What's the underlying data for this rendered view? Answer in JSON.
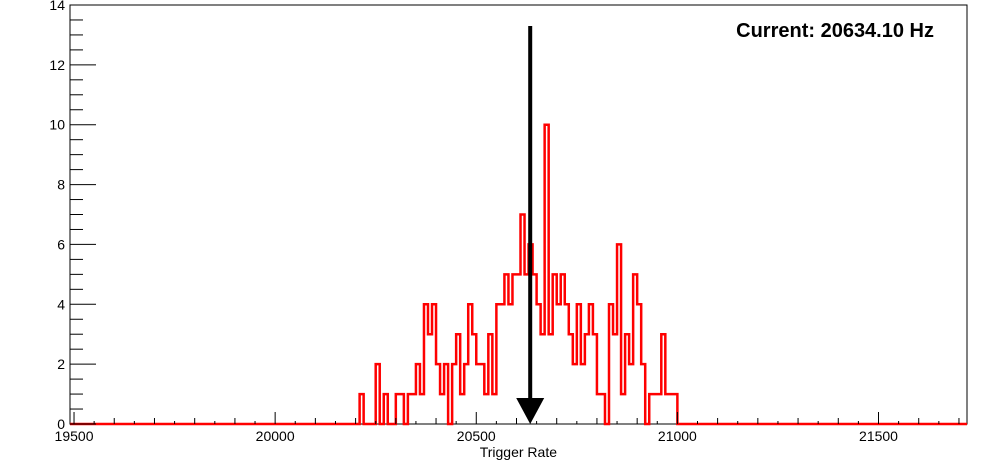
{
  "chart_data": {
    "type": "histogram",
    "title": "",
    "xlabel": "Trigger Rate",
    "ylabel": "",
    "xlim": [
      19490,
      21720
    ],
    "ylim": [
      0,
      14
    ],
    "x_ticks": [
      19500,
      20000,
      20500,
      21000,
      21500
    ],
    "x_tick_labels": [
      "19500",
      "20000",
      "20500",
      "21000",
      "21500"
    ],
    "y_ticks": [
      0,
      2,
      4,
      6,
      8,
      10,
      12,
      14
    ],
    "y_tick_labels": [
      "0",
      "2",
      "4",
      "6",
      "8",
      "10",
      "12",
      "14"
    ],
    "grid": false,
    "legend": "none",
    "bin_width": 10,
    "series": [
      {
        "color": "#ff0000",
        "bins": [
          [
            20210,
            1
          ],
          [
            20220,
            0
          ],
          [
            20230,
            0
          ],
          [
            20240,
            0
          ],
          [
            20250,
            2
          ],
          [
            20260,
            0
          ],
          [
            20270,
            1
          ],
          [
            20280,
            0
          ],
          [
            20290,
            0
          ],
          [
            20300,
            1
          ],
          [
            20310,
            1
          ],
          [
            20320,
            0
          ],
          [
            20330,
            1
          ],
          [
            20340,
            1
          ],
          [
            20350,
            2
          ],
          [
            20360,
            1
          ],
          [
            20370,
            4
          ],
          [
            20380,
            3
          ],
          [
            20390,
            4
          ],
          [
            20400,
            2
          ],
          [
            20410,
            1
          ],
          [
            20420,
            2
          ],
          [
            20430,
            0
          ],
          [
            20440,
            2
          ],
          [
            20450,
            3
          ],
          [
            20460,
            1
          ],
          [
            20470,
            2
          ],
          [
            20480,
            4
          ],
          [
            20490,
            3
          ],
          [
            20500,
            2
          ],
          [
            20510,
            2
          ],
          [
            20520,
            1
          ],
          [
            20530,
            3
          ],
          [
            20540,
            1
          ],
          [
            20550,
            4
          ],
          [
            20560,
            4
          ],
          [
            20570,
            5
          ],
          [
            20580,
            4
          ],
          [
            20590,
            5
          ],
          [
            20600,
            5
          ],
          [
            20610,
            7
          ],
          [
            20620,
            5
          ],
          [
            20630,
            6
          ],
          [
            20640,
            5
          ],
          [
            20650,
            4
          ],
          [
            20660,
            3
          ],
          [
            20670,
            10
          ],
          [
            20680,
            3
          ],
          [
            20690,
            5
          ],
          [
            20700,
            4
          ],
          [
            20710,
            5
          ],
          [
            20720,
            4
          ],
          [
            20730,
            3
          ],
          [
            20740,
            2
          ],
          [
            20750,
            4
          ],
          [
            20760,
            2
          ],
          [
            20770,
            3
          ],
          [
            20780,
            4
          ],
          [
            20790,
            3
          ],
          [
            20800,
            1
          ],
          [
            20810,
            1
          ],
          [
            20820,
            0
          ],
          [
            20830,
            4
          ],
          [
            20840,
            3
          ],
          [
            20850,
            6
          ],
          [
            20860,
            1
          ],
          [
            20870,
            3
          ],
          [
            20880,
            2
          ],
          [
            20890,
            5
          ],
          [
            20900,
            4
          ],
          [
            20910,
            2
          ],
          [
            20920,
            0
          ],
          [
            20930,
            1
          ],
          [
            20940,
            1
          ],
          [
            20950,
            1
          ],
          [
            20960,
            3
          ],
          [
            20970,
            1
          ],
          [
            20980,
            1
          ],
          [
            20990,
            1
          ],
          [
            21000,
            0
          ]
        ]
      }
    ],
    "annotations": [
      {
        "text": "Current: 20634.10 Hz",
        "position": "top-right"
      }
    ],
    "marker_arrow": {
      "x": 20634.1,
      "y_top": 13.3,
      "y_bottom": 0,
      "color": "#000000"
    }
  }
}
